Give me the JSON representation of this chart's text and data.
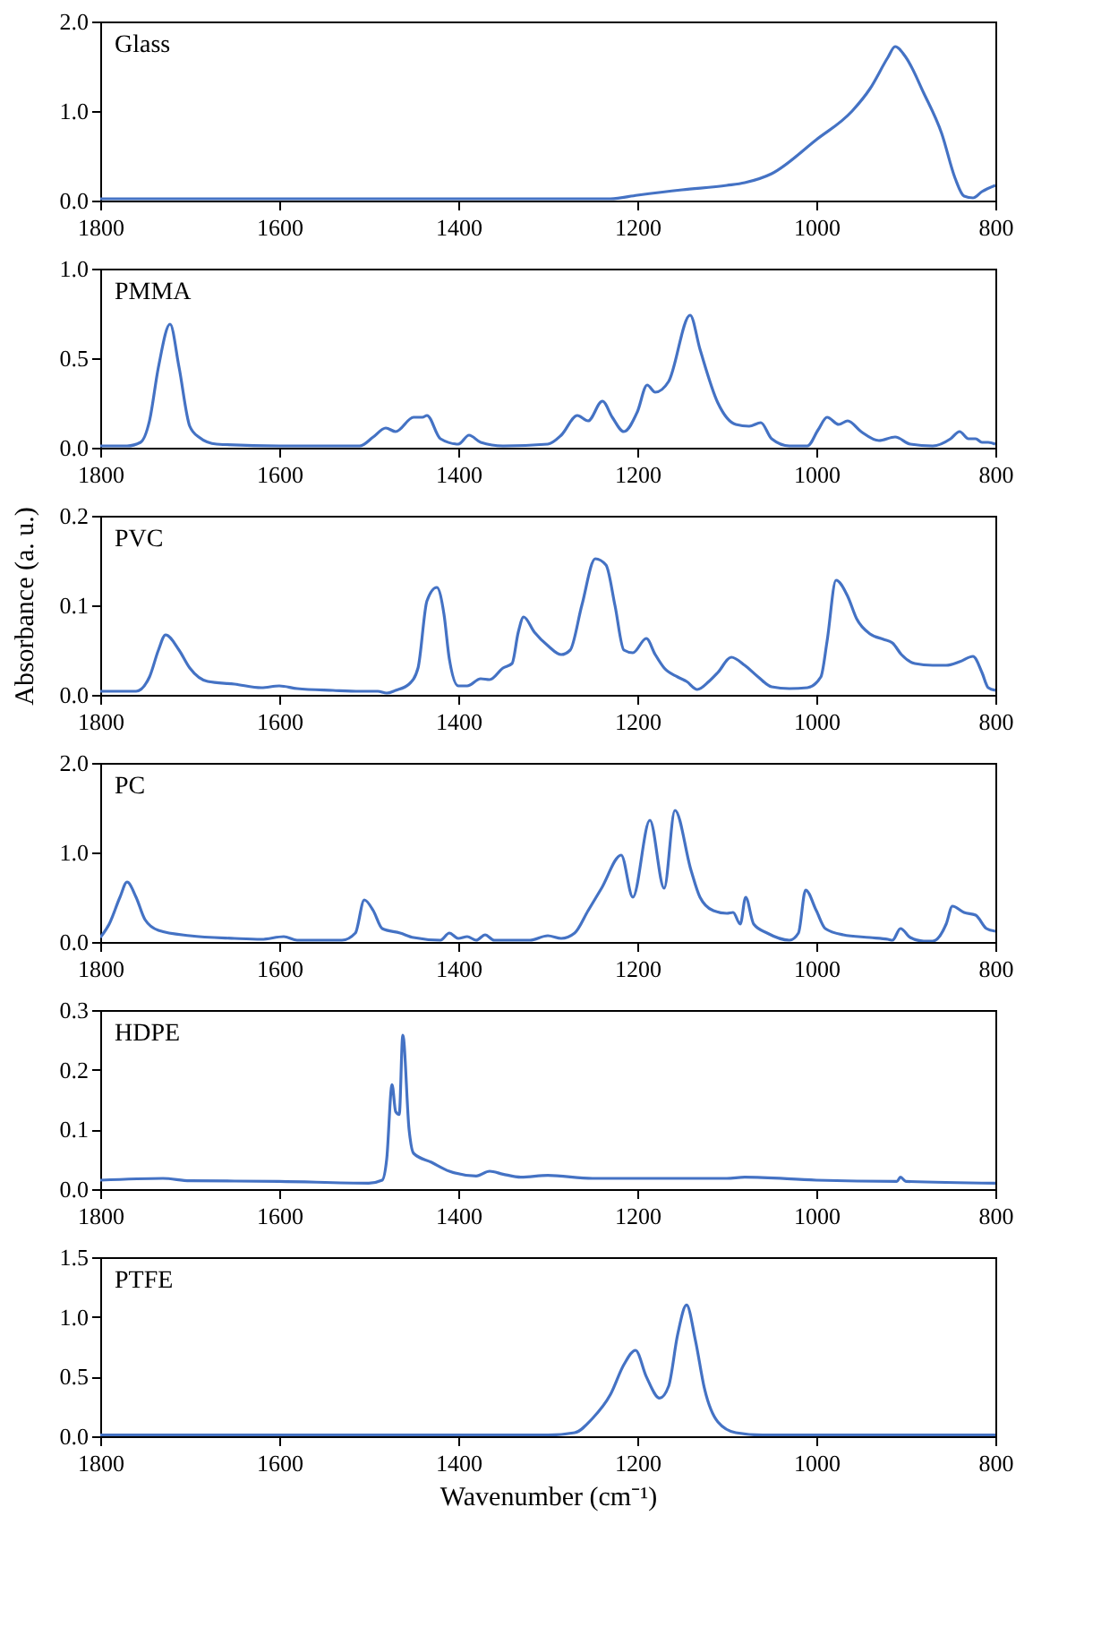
{
  "chart_data": [
    {
      "type": "line",
      "title": "Glass",
      "xlim": [
        1800,
        800
      ],
      "xticks": [
        1800,
        1600,
        1400,
        1200,
        1000,
        800
      ],
      "ylim": [
        0,
        2
      ],
      "yticks": [
        {
          "value": 0,
          "label": "0.0"
        },
        {
          "value": 1,
          "label": "1.0"
        },
        {
          "value": 2,
          "label": "2.0"
        }
      ],
      "grid": false,
      "series": [
        {
          "color": "#4472c4",
          "x": [
            1800,
            1600,
            1400,
            1250,
            1230,
            1200,
            1150,
            1100,
            1080,
            1050,
            1000,
            960,
            940,
            920,
            912,
            900,
            880,
            860,
            845,
            835,
            825,
            815,
            800
          ],
          "values": [
            0.02,
            0.02,
            0.02,
            0.02,
            0.02,
            0.06,
            0.12,
            0.17,
            0.2,
            0.3,
            0.68,
            1.0,
            1.25,
            1.6,
            1.72,
            1.6,
            1.2,
            0.75,
            0.25,
            0.05,
            0.03,
            0.1,
            0.17
          ]
        }
      ]
    },
    {
      "type": "line",
      "title": "PMMA",
      "xlim": [
        1800,
        800
      ],
      "xticks": [
        1800,
        1600,
        1400,
        1200,
        1000,
        800
      ],
      "ylim": [
        0,
        1
      ],
      "yticks": [
        {
          "value": 0,
          "label": "0.0"
        },
        {
          "value": 0.5,
          "label": "0.5"
        },
        {
          "value": 1,
          "label": "1.0"
        }
      ],
      "grid": false,
      "series": [
        {
          "color": "#4472c4",
          "x": [
            1800,
            1770,
            1755,
            1745,
            1735,
            1722,
            1712,
            1700,
            1690,
            1670,
            1600,
            1510,
            1495,
            1481,
            1470,
            1450,
            1440,
            1435,
            1420,
            1400,
            1388,
            1375,
            1350,
            1300,
            1285,
            1267,
            1255,
            1239,
            1228,
            1215,
            1200,
            1189,
            1180,
            1165,
            1141,
            1130,
            1110,
            1090,
            1075,
            1062,
            1050,
            1030,
            1010,
            998,
            988,
            975,
            965,
            950,
            930,
            912,
            895,
            870,
            850,
            840,
            830,
            822,
            815,
            808,
            800
          ],
          "values": [
            0.01,
            0.01,
            0.03,
            0.15,
            0.45,
            0.69,
            0.45,
            0.12,
            0.06,
            0.02,
            0.01,
            0.01,
            0.06,
            0.11,
            0.09,
            0.17,
            0.17,
            0.18,
            0.05,
            0.02,
            0.07,
            0.03,
            0.01,
            0.02,
            0.07,
            0.18,
            0.15,
            0.26,
            0.17,
            0.09,
            0.2,
            0.35,
            0.31,
            0.37,
            0.74,
            0.55,
            0.25,
            0.13,
            0.12,
            0.14,
            0.05,
            0.01,
            0.01,
            0.1,
            0.17,
            0.13,
            0.15,
            0.09,
            0.04,
            0.06,
            0.02,
            0.01,
            0.05,
            0.09,
            0.05,
            0.05,
            0.03,
            0.03,
            0.02
          ]
        }
      ]
    },
    {
      "type": "line",
      "title": "PVC",
      "ylabel": "Absorbance (a. u.)",
      "xlim": [
        1800,
        800
      ],
      "xticks": [
        1800,
        1600,
        1400,
        1200,
        1000,
        800
      ],
      "ylim": [
        0,
        0.2
      ],
      "yticks": [
        {
          "value": 0,
          "label": "0.0"
        },
        0.1,
        0.2
      ],
      "grid": false,
      "series": [
        {
          "color": "#4472c4",
          "x": [
            1800,
            1760,
            1745,
            1735,
            1727,
            1712,
            1700,
            1680,
            1650,
            1620,
            1600,
            1580,
            1540,
            1510,
            1490,
            1480,
            1470,
            1455,
            1445,
            1435,
            1424,
            1416,
            1410,
            1400,
            1390,
            1375,
            1365,
            1350,
            1340,
            1333,
            1327,
            1315,
            1300,
            1285,
            1275,
            1262,
            1247,
            1235,
            1225,
            1215,
            1205,
            1190,
            1180,
            1170,
            1155,
            1145,
            1133,
            1120,
            1110,
            1095,
            1080,
            1065,
            1050,
            1030,
            1010,
            995,
            988,
            978,
            965,
            955,
            940,
            925,
            915,
            905,
            890,
            870,
            855,
            840,
            825,
            815,
            808,
            800
          ],
          "values": [
            0.004,
            0.004,
            0.02,
            0.05,
            0.067,
            0.05,
            0.03,
            0.015,
            0.012,
            0.008,
            0.01,
            0.007,
            0.005,
            0.004,
            0.004,
            0.002,
            0.005,
            0.012,
            0.03,
            0.105,
            0.12,
            0.09,
            0.04,
            0.01,
            0.01,
            0.018,
            0.017,
            0.03,
            0.035,
            0.07,
            0.087,
            0.07,
            0.055,
            0.045,
            0.05,
            0.1,
            0.152,
            0.145,
            0.1,
            0.05,
            0.047,
            0.063,
            0.045,
            0.03,
            0.02,
            0.015,
            0.006,
            0.015,
            0.025,
            0.042,
            0.033,
            0.02,
            0.009,
            0.007,
            0.008,
            0.02,
            0.06,
            0.128,
            0.11,
            0.085,
            0.068,
            0.062,
            0.058,
            0.045,
            0.035,
            0.033,
            0.033,
            0.037,
            0.043,
            0.025,
            0.008,
            0.005
          ]
        }
      ]
    },
    {
      "type": "line",
      "title": "PC",
      "xlim": [
        1800,
        800
      ],
      "xticks": [
        1800,
        1600,
        1400,
        1200,
        1000,
        800
      ],
      "ylim": [
        0,
        2
      ],
      "yticks": [
        {
          "value": 0,
          "label": "0.0"
        },
        {
          "value": 1,
          "label": "1.0"
        },
        {
          "value": 2,
          "label": "2.0"
        }
      ],
      "grid": false,
      "series": [
        {
          "color": "#4472c4",
          "x": [
            1800,
            1790,
            1778,
            1770,
            1760,
            1750,
            1735,
            1700,
            1650,
            1620,
            1595,
            1580,
            1530,
            1515,
            1505,
            1495,
            1485,
            1465,
            1450,
            1420,
            1410,
            1400,
            1390,
            1380,
            1370,
            1360,
            1320,
            1300,
            1285,
            1270,
            1255,
            1240,
            1218,
            1205,
            1186,
            1170,
            1158,
            1140,
            1130,
            1115,
            1100,
            1093,
            1085,
            1079,
            1070,
            1055,
            1030,
            1020,
            1012,
            1000,
            990,
            970,
            940,
            920,
            915,
            906,
            895,
            880,
            870,
            855,
            848,
            835,
            822,
            810,
            800
          ],
          "values": [
            0.05,
            0.2,
            0.5,
            0.67,
            0.5,
            0.25,
            0.13,
            0.07,
            0.04,
            0.03,
            0.06,
            0.02,
            0.02,
            0.1,
            0.47,
            0.35,
            0.15,
            0.1,
            0.05,
            0.02,
            0.1,
            0.04,
            0.06,
            0.02,
            0.08,
            0.02,
            0.02,
            0.07,
            0.04,
            0.1,
            0.35,
            0.6,
            0.97,
            0.5,
            1.36,
            0.6,
            1.47,
            0.8,
            0.5,
            0.35,
            0.32,
            0.33,
            0.2,
            0.5,
            0.2,
            0.1,
            0.02,
            0.1,
            0.58,
            0.35,
            0.15,
            0.08,
            0.05,
            0.03,
            0.02,
            0.15,
            0.05,
            0.01,
            0.01,
            0.2,
            0.4,
            0.33,
            0.3,
            0.15,
            0.12
          ]
        }
      ]
    },
    {
      "type": "line",
      "title": "HDPE",
      "xlim": [
        1800,
        800
      ],
      "xticks": [
        1800,
        1600,
        1400,
        1200,
        1000,
        800
      ],
      "ylim": [
        0,
        0.3
      ],
      "yticks": [
        {
          "value": 0,
          "label": "0.0"
        },
        0.1,
        0.2,
        0.3
      ],
      "grid": false,
      "series": [
        {
          "color": "#4472c4",
          "x": [
            1800,
            1730,
            1700,
            1600,
            1500,
            1485,
            1480,
            1474,
            1470,
            1466,
            1462,
            1455,
            1450,
            1430,
            1410,
            1380,
            1365,
            1350,
            1330,
            1300,
            1250,
            1100,
            1080,
            1000,
            910,
            906,
            900,
            800
          ],
          "values": [
            0.015,
            0.018,
            0.014,
            0.013,
            0.01,
            0.015,
            0.05,
            0.175,
            0.13,
            0.125,
            0.258,
            0.1,
            0.06,
            0.045,
            0.03,
            0.022,
            0.03,
            0.025,
            0.02,
            0.023,
            0.018,
            0.018,
            0.02,
            0.015,
            0.013,
            0.02,
            0.013,
            0.01
          ]
        }
      ]
    },
    {
      "type": "line",
      "title": "PTFE",
      "xlabel": "Wavenumber (cm⁻¹)",
      "xlim": [
        1800,
        800
      ],
      "xticks": [
        1800,
        1600,
        1400,
        1200,
        1000,
        800
      ],
      "ylim": [
        0,
        1.5
      ],
      "yticks": [
        {
          "value": 0,
          "label": "0.0"
        },
        0.5,
        {
          "value": 1,
          "label": "1.0"
        },
        1.5
      ],
      "grid": false,
      "series": [
        {
          "color": "#4472c4",
          "x": [
            1800,
            1300,
            1270,
            1250,
            1230,
            1215,
            1202,
            1190,
            1175,
            1165,
            1155,
            1145,
            1135,
            1125,
            1110,
            1090,
            1060,
            800
          ],
          "values": [
            0.01,
            0.01,
            0.03,
            0.15,
            0.35,
            0.6,
            0.72,
            0.5,
            0.32,
            0.42,
            0.85,
            1.1,
            0.8,
            0.4,
            0.12,
            0.03,
            0.01,
            0.01
          ]
        }
      ]
    }
  ]
}
